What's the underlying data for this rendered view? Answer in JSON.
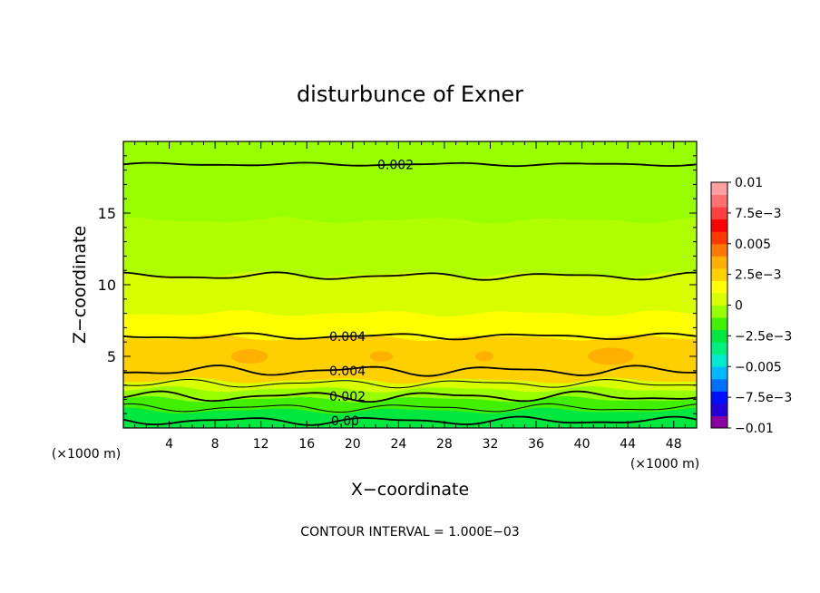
{
  "chart_data": {
    "type": "heatmap",
    "title": "disturbunce of Exner",
    "xlabel": "X−coordinate",
    "ylabel": "Z−coordinate",
    "x_unit": "(×1000 m)",
    "z_unit": "(×1000 m)",
    "footer": "CONTOUR INTERVAL = 1.000E−03",
    "xlim": [
      0,
      50
    ],
    "ylim": [
      0,
      20
    ],
    "x_ticks": [
      "4",
      "8",
      "12",
      "16",
      "20",
      "24",
      "28",
      "32",
      "36",
      "40",
      "44",
      "48"
    ],
    "y_ticks": [
      "5",
      "10",
      "15"
    ],
    "colorbar": {
      "range": [
        -0.01,
        0.01
      ],
      "tick_labels": [
        "0.01",
        "7.5e−3",
        "0.005",
        "2.5e−3",
        "0",
        "−2.5e−3",
        "−0.005",
        "−7.5e−3",
        "−0.01"
      ],
      "colors": [
        "#8a00a0",
        "#2400d8",
        "#0010ff",
        "#0070ff",
        "#00b8ff",
        "#00e8d0",
        "#00f080",
        "#00e840",
        "#40f000",
        "#98ff00",
        "#d8ff00",
        "#ffff00",
        "#ffd000",
        "#ffb000",
        "#ff7800",
        "#ff3800",
        "#ff0000",
        "#ff4040",
        "#ff7070",
        "#ffa0a0"
      ]
    },
    "contour_labels": [
      {
        "text": "0.002",
        "x": 22.0,
        "z": 18.4
      },
      {
        "text": "0.004",
        "x": 17.8,
        "z": 6.4
      },
      {
        "text": "0.004",
        "x": 17.8,
        "z": 4.0
      },
      {
        "text": "0.002",
        "x": 17.8,
        "z": 2.2
      },
      {
        "text": "0.00",
        "x": 17.6,
        "z": 0.5
      }
    ],
    "bands": [
      {
        "z": 20,
        "color": "#98ff00"
      },
      {
        "z": 14.5,
        "color": "#b0ff00"
      },
      {
        "z": 10.7,
        "color": "#d8ff00"
      },
      {
        "z": 8.0,
        "color": "#ffff00"
      },
      {
        "z": 6.3,
        "color": "#ffd000"
      },
      {
        "z": 3.3,
        "color": "#d8ff00"
      },
      {
        "z": 2.7,
        "color": "#98ff00"
      },
      {
        "z": 2.0,
        "color": "#40f000"
      },
      {
        "z": 1.2,
        "color": "#00e840"
      }
    ],
    "contours": [
      {
        "z": 18.4,
        "amp": 0.08,
        "bold": true
      },
      {
        "z": 10.6,
        "amp": 0.18,
        "bold": true
      },
      {
        "z": 6.4,
        "amp": 0.15,
        "bold": true
      },
      {
        "z": 4.0,
        "amp": 0.25,
        "bold": true
      },
      {
        "z": 3.1,
        "amp": 0.2,
        "bold": false
      },
      {
        "z": 2.2,
        "amp": 0.25,
        "bold": true
      },
      {
        "z": 1.4,
        "amp": 0.2,
        "bold": false
      },
      {
        "z": 0.5,
        "amp": 0.2,
        "bold": true
      }
    ],
    "blobs": [
      {
        "x": 11.0,
        "z": 5.0,
        "rx": 1.6,
        "rz": 0.5
      },
      {
        "x": 22.5,
        "z": 5.0,
        "rx": 1.0,
        "rz": 0.35
      },
      {
        "x": 31.5,
        "z": 5.0,
        "rx": 0.8,
        "rz": 0.35
      },
      {
        "x": 42.5,
        "z": 5.0,
        "rx": 2.0,
        "rz": 0.6
      }
    ]
  }
}
